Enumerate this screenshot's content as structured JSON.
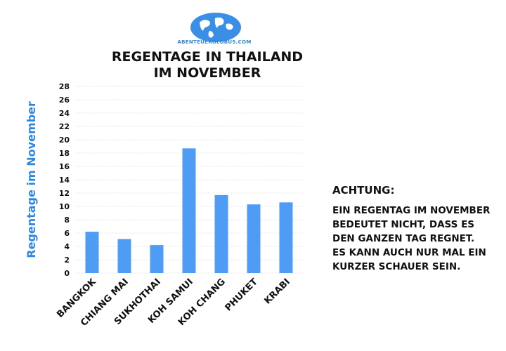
{
  "logo": {
    "text": "ABENTEUERGLOBUS.COM"
  },
  "note": {
    "heading": "ACHTUNG:",
    "lines": [
      "EIN REGENTAG IM NOVEMBER",
      "BEDEUTET NICHT, DASS ES",
      "DEN GANZEN TAG REGNET.",
      "ES KANN AUCH NUR MAL EIN",
      "KURZER SCHAUER SEIN."
    ]
  },
  "colors": {
    "bar": "#4f9cf5",
    "ylabel": "#2e86de",
    "text": "#111111"
  },
  "chart_data": {
    "type": "bar",
    "title_lines": [
      "REGENTAGE IN THAILAND",
      "IM NOVEMBER"
    ],
    "ylabel": "Regentage im November",
    "xlabel": "",
    "categories": [
      "BANGKOK",
      "CHIANG MAI",
      "SUKHOTHAI",
      "KOH SAMUI",
      "KOH CHANG",
      "PHUKET",
      "KRABI"
    ],
    "values": [
      6.2,
      5.1,
      4.2,
      18.7,
      11.7,
      10.3,
      10.6
    ],
    "ylim": [
      0,
      28
    ],
    "yticks": [
      0,
      2,
      4,
      6,
      8,
      10,
      12,
      14,
      16,
      18,
      20,
      22,
      24,
      26,
      28
    ],
    "grid": true,
    "legend": "none"
  }
}
